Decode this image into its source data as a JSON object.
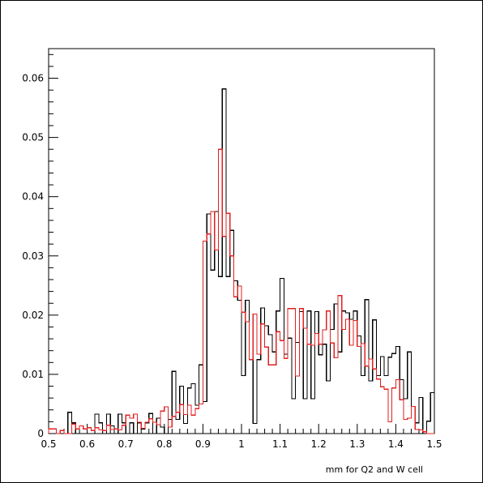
{
  "chart_data": {
    "type": "histogram",
    "title": "",
    "xlabel": "mm for Q2 and W cell",
    "ylabel": "",
    "xlim": [
      0.5,
      1.5
    ],
    "ylim": [
      0,
      0.065
    ],
    "bin_width": 0.01,
    "x_ticks": [
      0.5,
      0.6,
      0.7,
      0.8,
      0.9,
      1,
      1.1,
      1.2,
      1.3,
      1.4,
      1.5
    ],
    "x_tick_labels": [
      "0.5",
      "0.6",
      "0.7",
      "0.8",
      "0.9",
      "1",
      "1.1",
      "1.2",
      "1.3",
      "1.4",
      "1.5"
    ],
    "y_ticks": [
      0,
      0.01,
      0.02,
      0.03,
      0.04,
      0.05,
      0.06
    ],
    "y_tick_labels": [
      "0",
      "0.01",
      "0.02",
      "0.03",
      "0.04",
      "0.05",
      "0.06"
    ],
    "grid": false,
    "series": [
      {
        "color": "#000000",
        "values": [
          0,
          0,
          0,
          0,
          0,
          0.0036,
          0.0018,
          0,
          0,
          0,
          0,
          0,
          0.0033,
          0.0018,
          0,
          0.0033,
          0.0013,
          0,
          0.0033,
          0.0018,
          0,
          0.0018,
          0,
          0.0018,
          0.0008,
          0.0018,
          0.0034,
          0,
          0.0026,
          0.0011,
          0,
          0.0024,
          0.0105,
          0.0024,
          0.008,
          0.0017,
          0.0077,
          0.0084,
          0.0048,
          0.0116,
          0.0054,
          0.0371,
          0.0276,
          0.0375,
          0.0265,
          0.0582,
          0.0265,
          0.0343,
          0.0258,
          0.0225,
          0.0098,
          0.0225,
          0.0125,
          0.0017,
          0.0125,
          0.0212,
          0.0182,
          0.0167,
          0.0138,
          0.0207,
          0.0262,
          0.0134,
          0.0161,
          0.0059,
          0.0154,
          0.0206,
          0.0059,
          0.0207,
          0.0059,
          0.0206,
          0.0133,
          0.0151,
          0.0089,
          0.0176,
          0.0219,
          0.0138,
          0.0207,
          0.0204,
          0.0193,
          0.0207,
          0.0165,
          0.0098,
          0.0226,
          0.0089,
          0.0192,
          0.0098,
          0.013,
          0.0098,
          0.0129,
          0.0135,
          0.0147,
          0.0091,
          0.0059,
          0.0138,
          0.0046,
          0.0018,
          0.0061,
          0,
          0.0021,
          0.0069
        ]
      },
      {
        "color": "#e02020",
        "values": [
          0.0008,
          0.0008,
          0,
          0.0005,
          0,
          0,
          0.0016,
          0.0008,
          0.0013,
          0.0008,
          0.001,
          0.0005,
          0.001,
          0.0006,
          0.0005,
          0.0014,
          0.0007,
          0.0008,
          0.0006,
          0.0014,
          0.0031,
          0.0026,
          0.0033,
          0.0019,
          0.0009,
          0.0019,
          0.0025,
          0.0019,
          0.0015,
          0.0038,
          0.0045,
          0.0011,
          0.0029,
          0.0036,
          0.0049,
          0.0032,
          0.0048,
          0.0031,
          0.0042,
          0.005,
          0.0325,
          0.0337,
          0.0375,
          0.031,
          0.048,
          0.0333,
          0.0372,
          0.03,
          0.0231,
          0.0249,
          0.0205,
          0.0189,
          0.0125,
          0.0202,
          0.0134,
          0.0185,
          0.0146,
          0.0116,
          0.0116,
          0.0172,
          0.0157,
          0.0127,
          0.0211,
          0.0211,
          0.0097,
          0.0211,
          0.0178,
          0.0151,
          0.0149,
          0.0169,
          0.0151,
          0.0175,
          0.0207,
          0.0153,
          0.0128,
          0.0233,
          0.0176,
          0.0193,
          0.0149,
          0.0191,
          0.0147,
          0.0152,
          0.0114,
          0.0126,
          0.0109,
          0.0092,
          0.0079,
          0.0075,
          0.002,
          0.0077,
          0.0091,
          0.0057,
          0.0024,
          0.0026,
          0.0046,
          0.0007,
          0.0006,
          0.0003,
          0,
          0
        ]
      }
    ]
  }
}
